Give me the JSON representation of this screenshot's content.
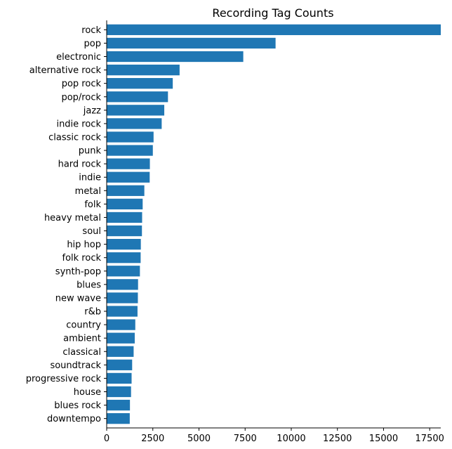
{
  "chart_data": {
    "type": "bar",
    "orientation": "horizontal",
    "title": "Recording Tag Counts",
    "xlabel": "",
    "ylabel": "",
    "xlim": [
      0,
      18100
    ],
    "x_ticks": [
      0,
      2500,
      5000,
      7500,
      10000,
      12500,
      15000,
      17500
    ],
    "grid": false,
    "legend": "none",
    "bar_color": "#1f77b4",
    "categories": [
      "rock",
      "pop",
      "electronic",
      "alternative rock",
      "pop rock",
      "pop/rock",
      "jazz",
      "indie rock",
      "classic rock",
      "punk",
      "hard rock",
      "indie",
      "metal",
      "folk",
      "heavy metal",
      "soul",
      "hip hop",
      "folk rock",
      "synth-pop",
      "blues",
      "new wave",
      "r&b",
      "country",
      "ambient",
      "classical",
      "soundtrack",
      "progressive rock",
      "house",
      "blues rock",
      "downtempo"
    ],
    "values": [
      18100,
      9150,
      7400,
      3950,
      3580,
      3320,
      3120,
      2980,
      2540,
      2500,
      2340,
      2330,
      2040,
      1950,
      1920,
      1910,
      1850,
      1840,
      1800,
      1700,
      1690,
      1670,
      1550,
      1520,
      1460,
      1380,
      1350,
      1320,
      1260,
      1250
    ]
  }
}
